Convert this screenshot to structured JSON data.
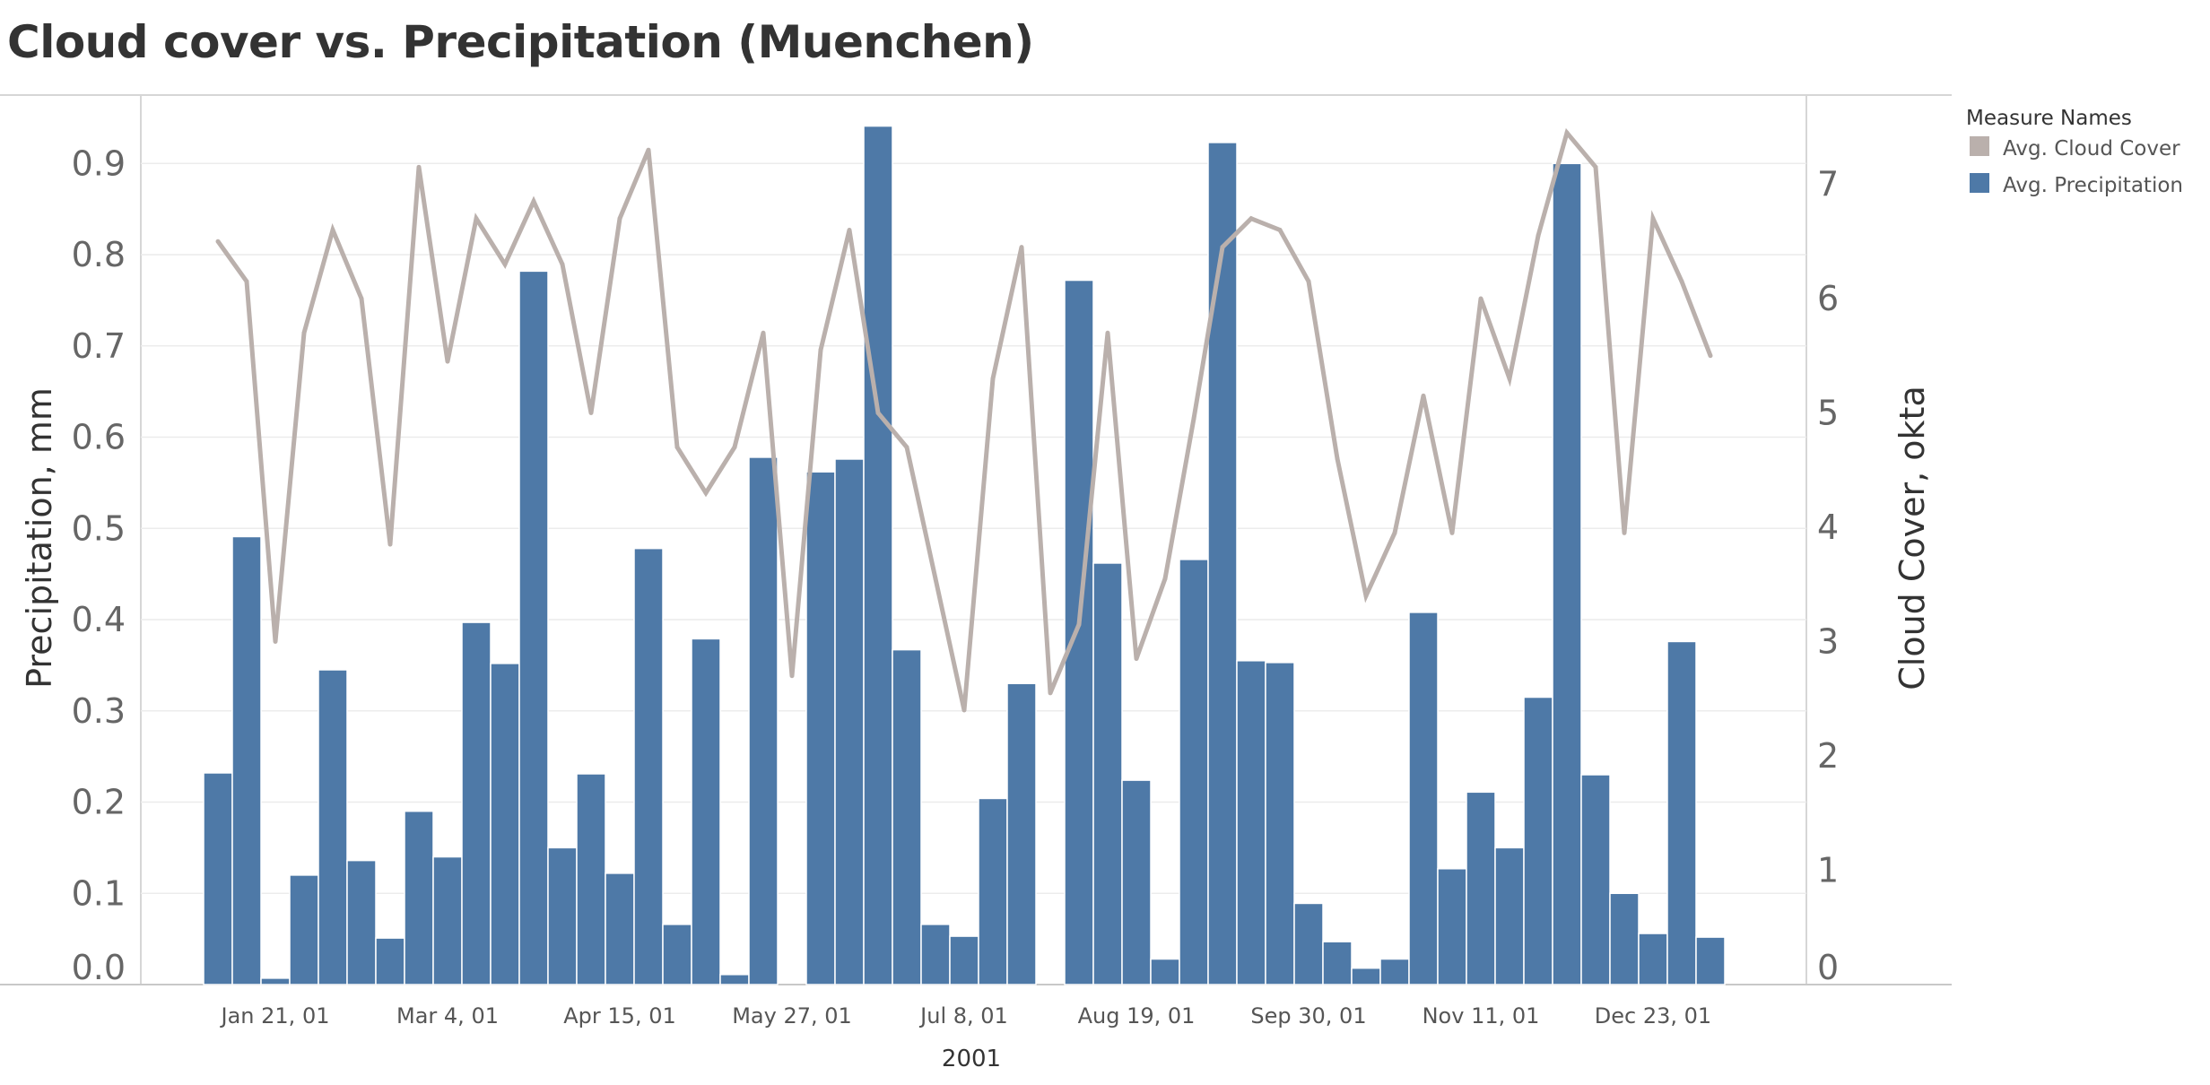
{
  "title": "Cloud cover vs. Precipitation (Muenchen)",
  "chart_data": {
    "type": "bar",
    "title": "Cloud cover vs. Precipitation (Muenchen)",
    "xlabel": "2001",
    "ylabel": "Precipitation, mm",
    "y2label": "Cloud Cover, okta",
    "ylim": [
      0,
      0.975
    ],
    "y2lim": [
      0,
      7.78
    ],
    "yticks": [
      "0.0",
      "0.1",
      "0.2",
      "0.3",
      "0.4",
      "0.5",
      "0.6",
      "0.7",
      "0.8",
      "0.9"
    ],
    "y2ticks": [
      "0",
      "1",
      "2",
      "3",
      "4",
      "5",
      "6",
      "7"
    ],
    "x_tick_labels": [
      "Jan 21, 01",
      "Mar 4, 01",
      "Apr 15, 01",
      "May 27, 01",
      "Jul 8, 01",
      "Aug 19, 01",
      "Sep 30, 01",
      "Nov 11, 01",
      "Dec 23, 01"
    ],
    "x_tick_dates": [
      "2001-01-21",
      "2001-03-04",
      "2001-04-15",
      "2001-05-27",
      "2001-07-08",
      "2001-08-19",
      "2001-09-30",
      "2001-11-11",
      "2001-12-23"
    ],
    "x_start": "2001-01-07",
    "x": [
      "2001-01-07",
      "2001-01-14",
      "2001-01-21",
      "2001-01-28",
      "2001-02-04",
      "2001-02-11",
      "2001-02-18",
      "2001-02-25",
      "2001-03-04",
      "2001-03-11",
      "2001-03-18",
      "2001-03-25",
      "2001-04-01",
      "2001-04-08",
      "2001-04-15",
      "2001-04-22",
      "2001-04-29",
      "2001-05-06",
      "2001-05-13",
      "2001-05-20",
      "2001-05-27",
      "2001-06-03",
      "2001-06-10",
      "2001-06-17",
      "2001-06-24",
      "2001-07-01",
      "2001-07-08",
      "2001-07-15",
      "2001-07-22",
      "2001-07-29",
      "2001-08-05",
      "2001-08-12",
      "2001-08-19",
      "2001-08-26",
      "2001-09-02",
      "2001-09-09",
      "2001-09-16",
      "2001-09-23",
      "2001-09-30",
      "2001-10-07",
      "2001-10-14",
      "2001-10-21",
      "2001-10-28",
      "2001-11-04",
      "2001-11-11",
      "2001-11-18",
      "2001-11-25",
      "2001-12-02",
      "2001-12-09",
      "2001-12-16",
      "2001-12-23",
      "2001-12-30",
      "2002-01-06"
    ],
    "series": [
      {
        "name": "Avg. Precipitation",
        "type": "bar",
        "axis": "left",
        "color": "#4e79a7",
        "values": [
          0.232,
          0.491,
          0.007,
          0.12,
          0.345,
          0.136,
          0.051,
          0.19,
          0.14,
          0.397,
          0.352,
          0.782,
          0.15,
          0.231,
          0.122,
          0.478,
          0.066,
          0.379,
          0.011,
          0.578,
          0.0,
          0.562,
          0.576,
          0.941,
          0.367,
          0.066,
          0.053,
          0.204,
          0.33,
          0.0,
          0.772,
          0.462,
          0.224,
          0.028,
          0.466,
          0.923,
          0.355,
          0.353,
          0.089,
          0.047,
          0.018,
          0.028,
          0.408,
          0.127,
          0.211,
          0.15,
          0.315,
          0.9,
          0.23,
          0.1,
          0.056,
          0.376,
          0.052
        ]
      },
      {
        "name": "Avg. Cloud Cover",
        "type": "line",
        "axis": "right",
        "color": "#bab0ac",
        "values": [
          6.5,
          6.15,
          3.0,
          5.7,
          6.6,
          6.0,
          3.85,
          7.15,
          5.45,
          6.7,
          6.3,
          6.85,
          6.3,
          5.0,
          6.7,
          7.3,
          4.7,
          4.3,
          4.7,
          5.7,
          2.7,
          5.55,
          6.6,
          5.0,
          4.7,
          3.55,
          2.4,
          5.3,
          6.45,
          2.55,
          3.15,
          5.7,
          2.85,
          3.55,
          4.95,
          6.45,
          6.7,
          6.6,
          6.15,
          4.6,
          3.4,
          3.95,
          5.15,
          3.95,
          6.0,
          5.3,
          6.55,
          7.45,
          7.15,
          3.95,
          6.7,
          6.15,
          5.5
        ]
      }
    ],
    "grid": true,
    "legend": {
      "title": "Measure Names",
      "position": "top-right",
      "items": [
        {
          "label": "Avg. Cloud Cover",
          "color": "#bab0ac"
        },
        {
          "label": "Avg. Precipitation",
          "color": "#4e79a7"
        }
      ]
    }
  }
}
